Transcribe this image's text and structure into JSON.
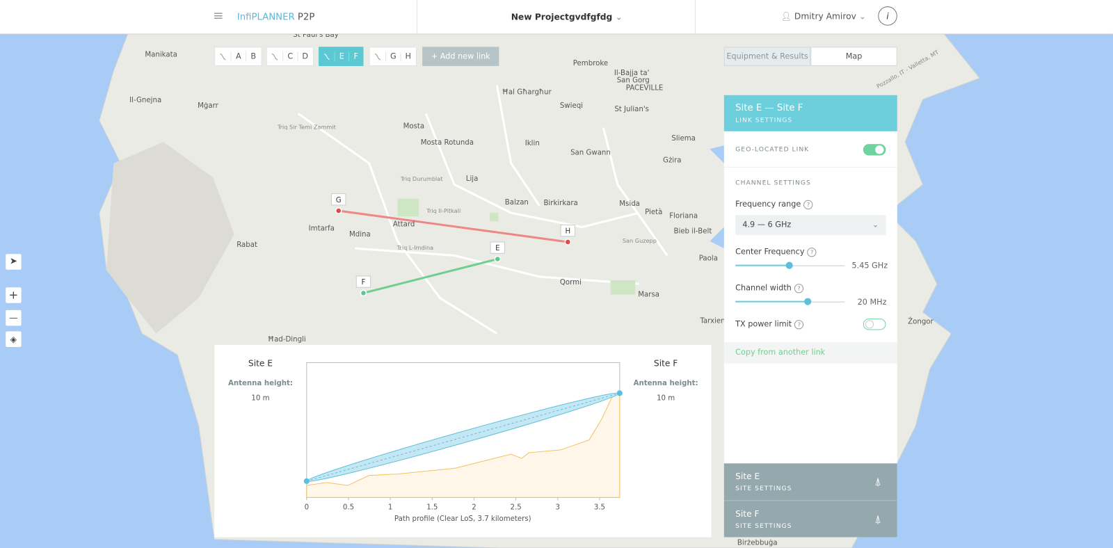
{
  "header": {
    "menu_icon": "≡",
    "brand": "InfiPLANNER",
    "brand_suffix": "P2P",
    "project": "New Projectgvdfgfdg",
    "user": "Dmitry Amirov",
    "info": "i"
  },
  "links": [
    {
      "from": "A",
      "to": "B"
    },
    {
      "from": "C",
      "to": "D"
    },
    {
      "from": "E",
      "to": "F"
    },
    {
      "from": "G",
      "to": "H"
    }
  ],
  "add_link": "Add new link",
  "tabs": [
    "Equipment & Results",
    "Map"
  ],
  "map": {
    "places": [
      "St Paul's Bay",
      "Manikata",
      "Pembroke",
      "Il-Bajja ta'",
      "San Gorg",
      "PACEVILLE",
      "Ħal Għargħur",
      "Il-Gnejna",
      "Mġarr",
      "Swieqi",
      "St Julian's",
      "Mosta",
      "Mosta Rotunda",
      "Iklin",
      "San Gwann",
      "Sliema",
      "Gżira",
      "Lija",
      "Balzan",
      "Birkirkara",
      "Msida",
      "Pietà",
      "Floriana",
      "Imtarfa",
      "Attard",
      "Mdina",
      "Rabat",
      "Bieb il-Belt",
      "Paola",
      "Qormi",
      "Marsa",
      "Tarxien",
      "Żongor",
      "Ħad-Dingli",
      "Birżebbuġa",
      "Triq Durumblat",
      "Triq Il-Pitkali",
      "Triq L-Imdina",
      "Triq Sir Temi Zammit",
      "San Guzepp",
      "Pozzallo, IT - Valletta, MT"
    ],
    "sites": [
      "G",
      "H",
      "E",
      "F"
    ]
  },
  "panel": {
    "title": "Site E — Site F",
    "subtitle": "LINK SETTINGS",
    "geo_label": "GEO-LOCATED LINK",
    "channel_heading": "CHANNEL SETTINGS",
    "frequency_label": "Frequency range",
    "frequency_value": "4.9 — 6 GHz",
    "center_label": "Center Frequency",
    "center_value": 5.45,
    "center_unit": "GHz",
    "width_label": "Channel width",
    "width_value": 20,
    "width_unit": "MHz",
    "tx_label": "TX power limit",
    "copy": "Copy from another link",
    "help": "?"
  },
  "site_panels": [
    {
      "name": "Site E",
      "sub": "SITE SETTINGS"
    },
    {
      "name": "Site F",
      "sub": "SITE SETTINGS"
    }
  ],
  "profile": {
    "left_site": "Site E",
    "right_site": "Site F",
    "antenna_label": "Antenna height:",
    "left_height": "10 m",
    "right_height": "10 m",
    "xlabel": "Path profile (Clear LoS, 3.7 kilometers)",
    "xlim": [
      0,
      3.74
    ],
    "xticks": [
      0,
      0.5,
      1,
      1.5,
      2,
      2.5,
      3,
      3.5
    ]
  },
  "controls": [
    "+",
    "—"
  ]
}
